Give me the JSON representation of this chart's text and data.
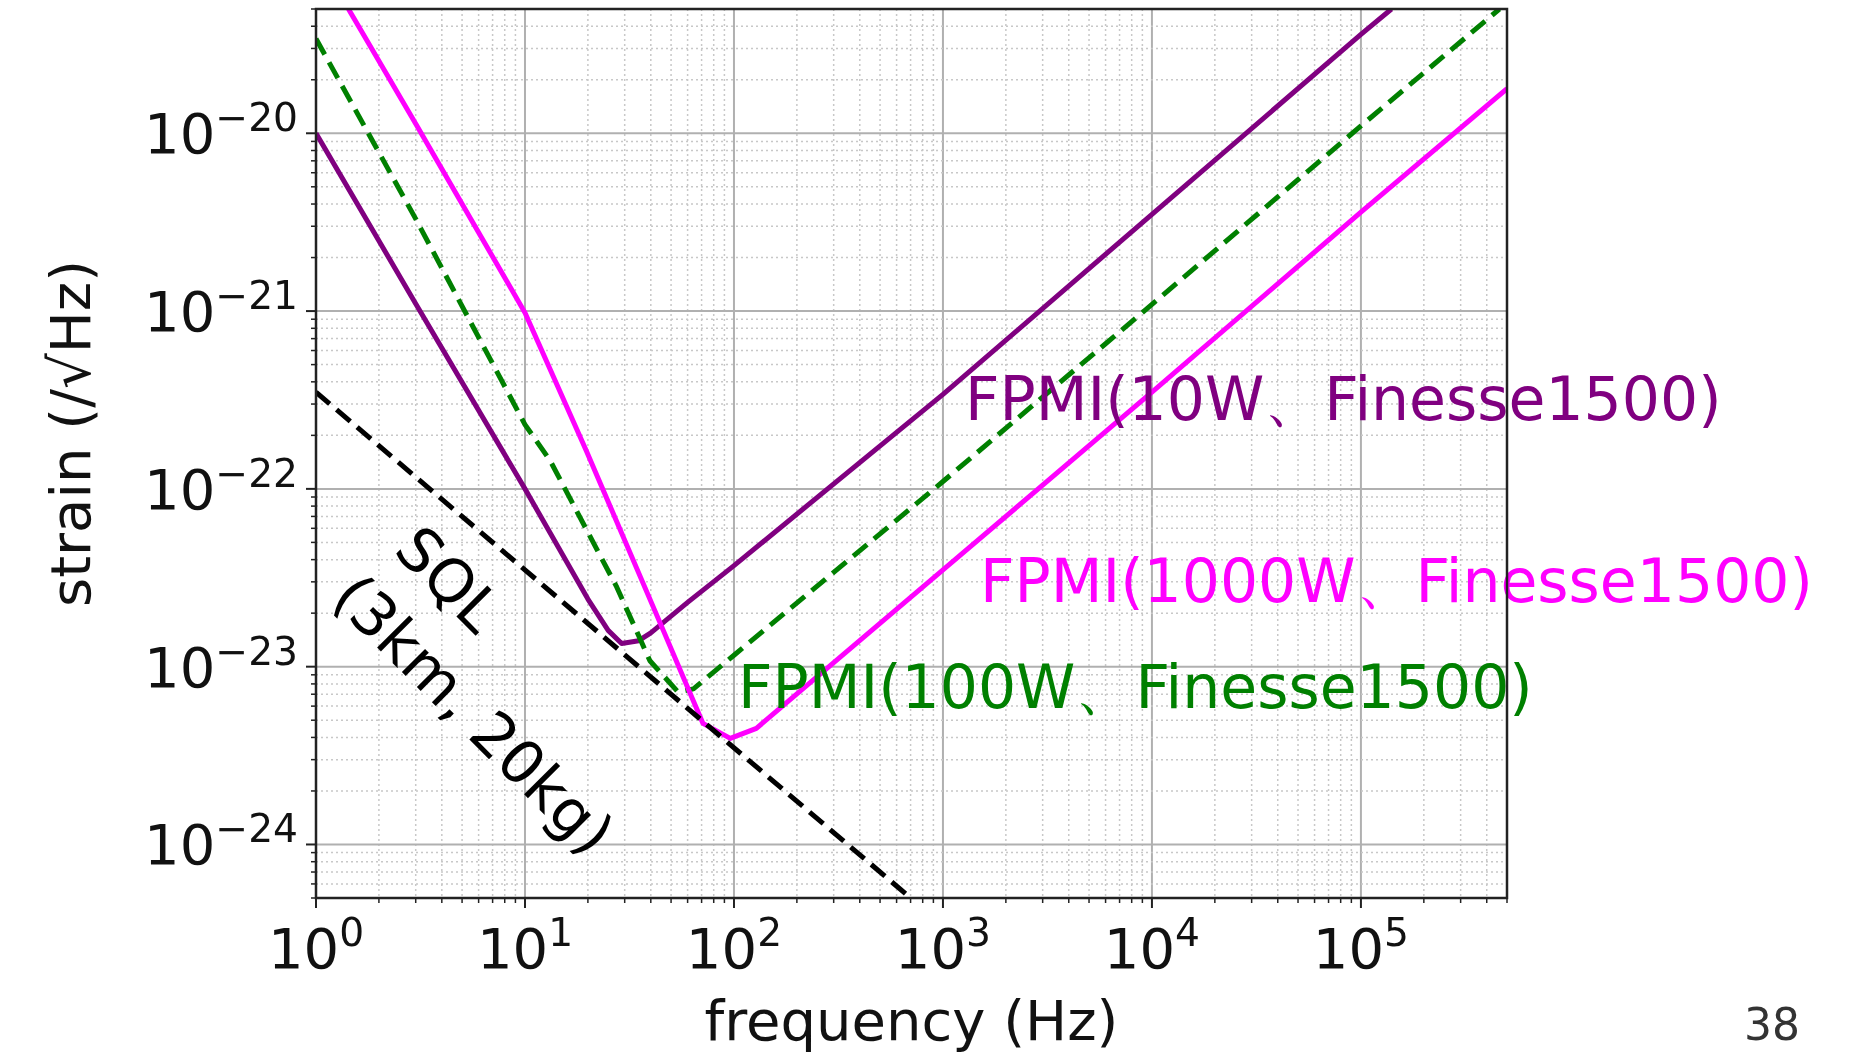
{
  "chart_data": {
    "type": "line",
    "xlabel": "frequency (Hz)",
    "ylabel": "strain (/√Hz)",
    "log": "xy",
    "grid": true,
    "xlim": [
      1,
      500000
    ],
    "ylim": [
      5e-25,
      5e-20
    ],
    "xticks": [
      {
        "value": 1,
        "label": "10$^{0}$"
      },
      {
        "value": 10,
        "label": "10$^{1}$"
      },
      {
        "value": 100,
        "label": "10$^{2}$"
      },
      {
        "value": 1000,
        "label": "10$^{3}$"
      },
      {
        "value": 10000,
        "label": "10$^{4}$"
      },
      {
        "value": 100000,
        "label": "10$^{5}$"
      }
    ],
    "yticks": [
      {
        "value": 1e-24,
        "label": "10$^{−24}$"
      },
      {
        "value": 1e-23,
        "label": "10$^{−23}$"
      },
      {
        "value": 1e-22,
        "label": "10$^{−22}$"
      },
      {
        "value": 1e-21,
        "label": "10$^{−21}$"
      },
      {
        "value": 1e-20,
        "label": "10$^{−20}$"
      }
    ],
    "annotations": [
      "38"
    ],
    "series": [
      {
        "name": "FPMI(10W、Finesse1500)",
        "color": "#800080",
        "line_style": "solid",
        "x": [
          1,
          3,
          10,
          20,
          25,
          29,
          35,
          40,
          60,
          100,
          1000,
          10000,
          100000,
          140000
        ],
        "values": [
          1e-20,
          1.1e-21,
          1e-22,
          2.4e-23,
          1.6e-23,
          1.35e-23,
          1.4e-23,
          1.55e-23,
          2.3e-23,
          3.7e-23,
          3.4e-22,
          3.5e-21,
          3.6e-20,
          5e-20
        ]
      },
      {
        "name": "FPMI(100W、Finesse1500)",
        "color": "#008000",
        "line_style": "dashed",
        "x": [
          1,
          3,
          10,
          13.2,
          27.5,
          39.6,
          54,
          64,
          100,
          1000,
          10000,
          100000,
          460000
        ],
        "values": [
          3.4e-20,
          3.3e-21,
          2.3e-22,
          1.44e-22,
          2.8e-23,
          1.08e-23,
          7.2e-24,
          7.5e-24,
          1.16e-23,
          1.1e-22,
          1.09e-21,
          1.1e-20,
          5e-20
        ]
      },
      {
        "name": "FPMI(1000W、Finesse1500)",
        "color": "#ff00ff",
        "line_style": "solid",
        "x": [
          1.43,
          3,
          10,
          19.7,
          45.9,
          71,
          96,
          128,
          1000,
          10000,
          100000,
          500000
        ],
        "values": [
          5e-20,
          1.13e-20,
          9.8e-22,
          1.63e-22,
          1.6e-23,
          4.8e-24,
          3.95e-24,
          4.5e-24,
          3.5e-23,
          3.5e-22,
          3.6e-21,
          1.78e-20
        ]
      },
      {
        "name": "SQL\n(3km, 20kg)",
        "color": "#000000",
        "line_style": "dashed",
        "x": [
          1,
          700
        ],
        "values": [
          3.5e-22,
          5e-25
        ]
      }
    ]
  }
}
